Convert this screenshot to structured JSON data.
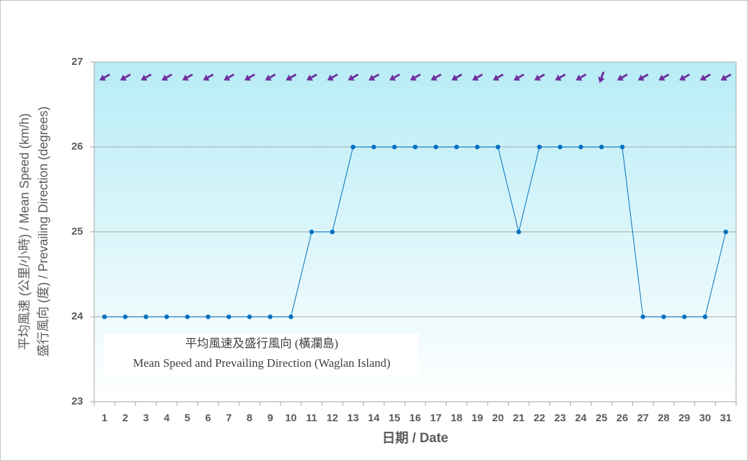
{
  "chart_data": {
    "type": "line",
    "x_label": "日期 / Date",
    "y_label": [
      "平均風速 (公里/小時) / Mean Speed (km/h)",
      "盛行風向 (度) / Prevailing Direction (degrees)"
    ],
    "annotation": [
      "平均風速及盛行風向 (橫瀾島)",
      "Mean Speed and Prevailing Direction (Waglan Island)"
    ],
    "categories": [
      "1",
      "2",
      "3",
      "4",
      "5",
      "6",
      "7",
      "8",
      "9",
      "10",
      "11",
      "12",
      "13",
      "14",
      "15",
      "16",
      "17",
      "18",
      "19",
      "20",
      "21",
      "22",
      "23",
      "24",
      "25",
      "26",
      "27",
      "28",
      "29",
      "30",
      "31"
    ],
    "values": [
      24,
      24,
      24,
      24,
      24,
      24,
      24,
      24,
      24,
      24,
      25,
      25,
      26,
      26,
      26,
      26,
      26,
      26,
      26,
      26,
      25,
      26,
      26,
      26,
      26,
      26,
      24,
      24,
      24,
      24,
      25
    ],
    "directions": [
      60,
      60,
      60,
      60,
      60,
      60,
      60,
      60,
      60,
      60,
      60,
      60,
      60,
      60,
      60,
      60,
      60,
      60,
      60,
      60,
      60,
      60,
      60,
      60,
      20,
      60,
      60,
      60,
      60,
      60,
      60
    ],
    "color": "#0070c0",
    "arrow_color": "#7030a0",
    "ylim": [
      23,
      27
    ],
    "yticks": [
      23,
      24,
      25,
      26,
      27
    ],
    "grid": true
  }
}
